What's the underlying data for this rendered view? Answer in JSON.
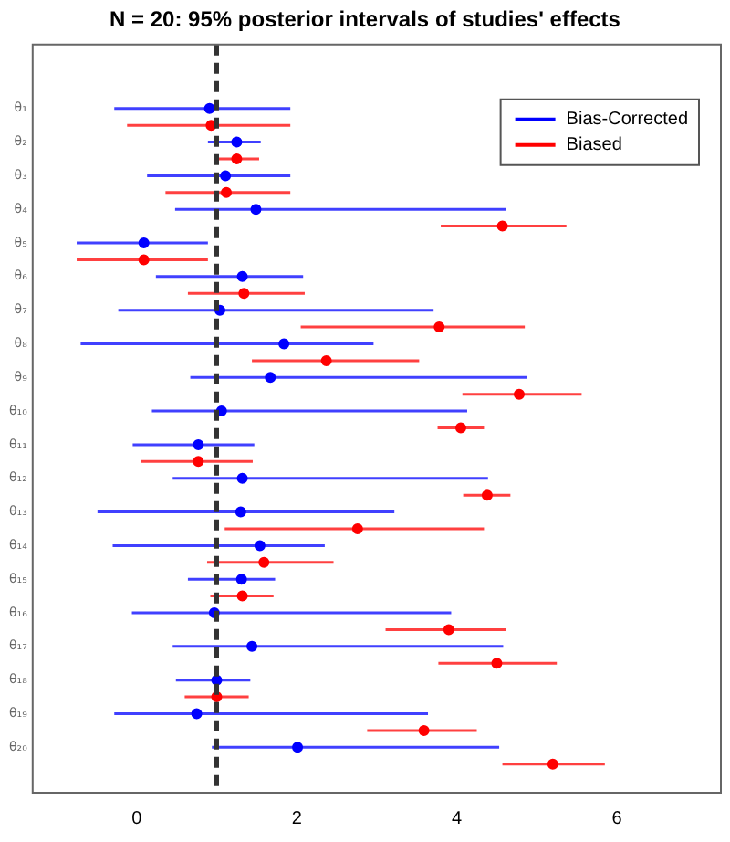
{
  "chart_data": {
    "type": "scatter",
    "title": "N = 20: 95% posterior intervals of studies' effects",
    "categories": [
      "θ₁",
      "θ₂",
      "θ₃",
      "θ₄",
      "θ₅",
      "θ₆",
      "θ₇",
      "θ₈",
      "θ₉",
      "θ₁₀",
      "θ₁₁",
      "θ₁₂",
      "θ₁₃",
      "θ₁₄",
      "θ₁₅",
      "θ₁₆",
      "θ₁₇",
      "θ₁₈",
      "θ₁₉",
      "θ₂₀"
    ],
    "orientation": "horizontal",
    "series": [
      {
        "name": "Bias-Corrected",
        "color": "#0000ff",
        "values": [
          0.91,
          1.25,
          1.11,
          1.49,
          0.09,
          1.32,
          1.04,
          1.84,
          1.67,
          1.06,
          0.77,
          1.32,
          1.3,
          1.54,
          1.31,
          0.97,
          1.44,
          1.0,
          0.75,
          2.01
        ],
        "errors": [
          [
            -0.28,
            1.92
          ],
          [
            0.89,
            1.55
          ],
          [
            0.13,
            1.92
          ],
          [
            0.48,
            4.62
          ],
          [
            -0.75,
            0.89
          ],
          [
            0.24,
            2.08
          ],
          [
            -0.23,
            3.71
          ],
          [
            -0.7,
            2.96
          ],
          [
            0.67,
            4.88
          ],
          [
            0.19,
            4.13
          ],
          [
            -0.05,
            1.47
          ],
          [
            0.45,
            4.39
          ],
          [
            -0.49,
            3.22
          ],
          [
            -0.3,
            2.35
          ],
          [
            0.64,
            1.73
          ],
          [
            -0.06,
            3.93
          ],
          [
            0.45,
            4.58
          ],
          [
            0.49,
            1.42
          ],
          [
            -0.28,
            3.64
          ],
          [
            0.94,
            4.53
          ]
        ]
      },
      {
        "name": "Biased",
        "color": "#ff0000",
        "values": [
          0.93,
          1.25,
          1.12,
          4.57,
          0.09,
          1.34,
          3.78,
          2.37,
          4.78,
          4.05,
          0.77,
          4.38,
          2.76,
          1.59,
          1.32,
          3.9,
          4.5,
          1.0,
          3.59,
          5.2
        ],
        "errors": [
          [
            -0.12,
            1.92
          ],
          [
            0.97,
            1.53
          ],
          [
            0.36,
            1.92
          ],
          [
            3.8,
            5.37
          ],
          [
            -0.75,
            0.89
          ],
          [
            0.64,
            2.1
          ],
          [
            2.05,
            4.85
          ],
          [
            1.44,
            3.53
          ],
          [
            4.07,
            5.56
          ],
          [
            3.76,
            4.34
          ],
          [
            0.05,
            1.45
          ],
          [
            4.08,
            4.67
          ],
          [
            1.1,
            4.34
          ],
          [
            0.88,
            2.46
          ],
          [
            0.92,
            1.71
          ],
          [
            3.11,
            4.62
          ],
          [
            3.77,
            5.25
          ],
          [
            0.6,
            1.4
          ],
          [
            2.88,
            4.25
          ],
          [
            4.57,
            5.85
          ]
        ]
      }
    ],
    "xlim": [
      -1.3,
      7.3
    ],
    "xticks": [
      0,
      2,
      4,
      6
    ],
    "ref_lines": [
      {
        "axis": "x",
        "value": 1,
        "line_style": "dashed",
        "color": "#333333"
      }
    ],
    "legend": "top right",
    "grid": false,
    "marker": "circle"
  }
}
